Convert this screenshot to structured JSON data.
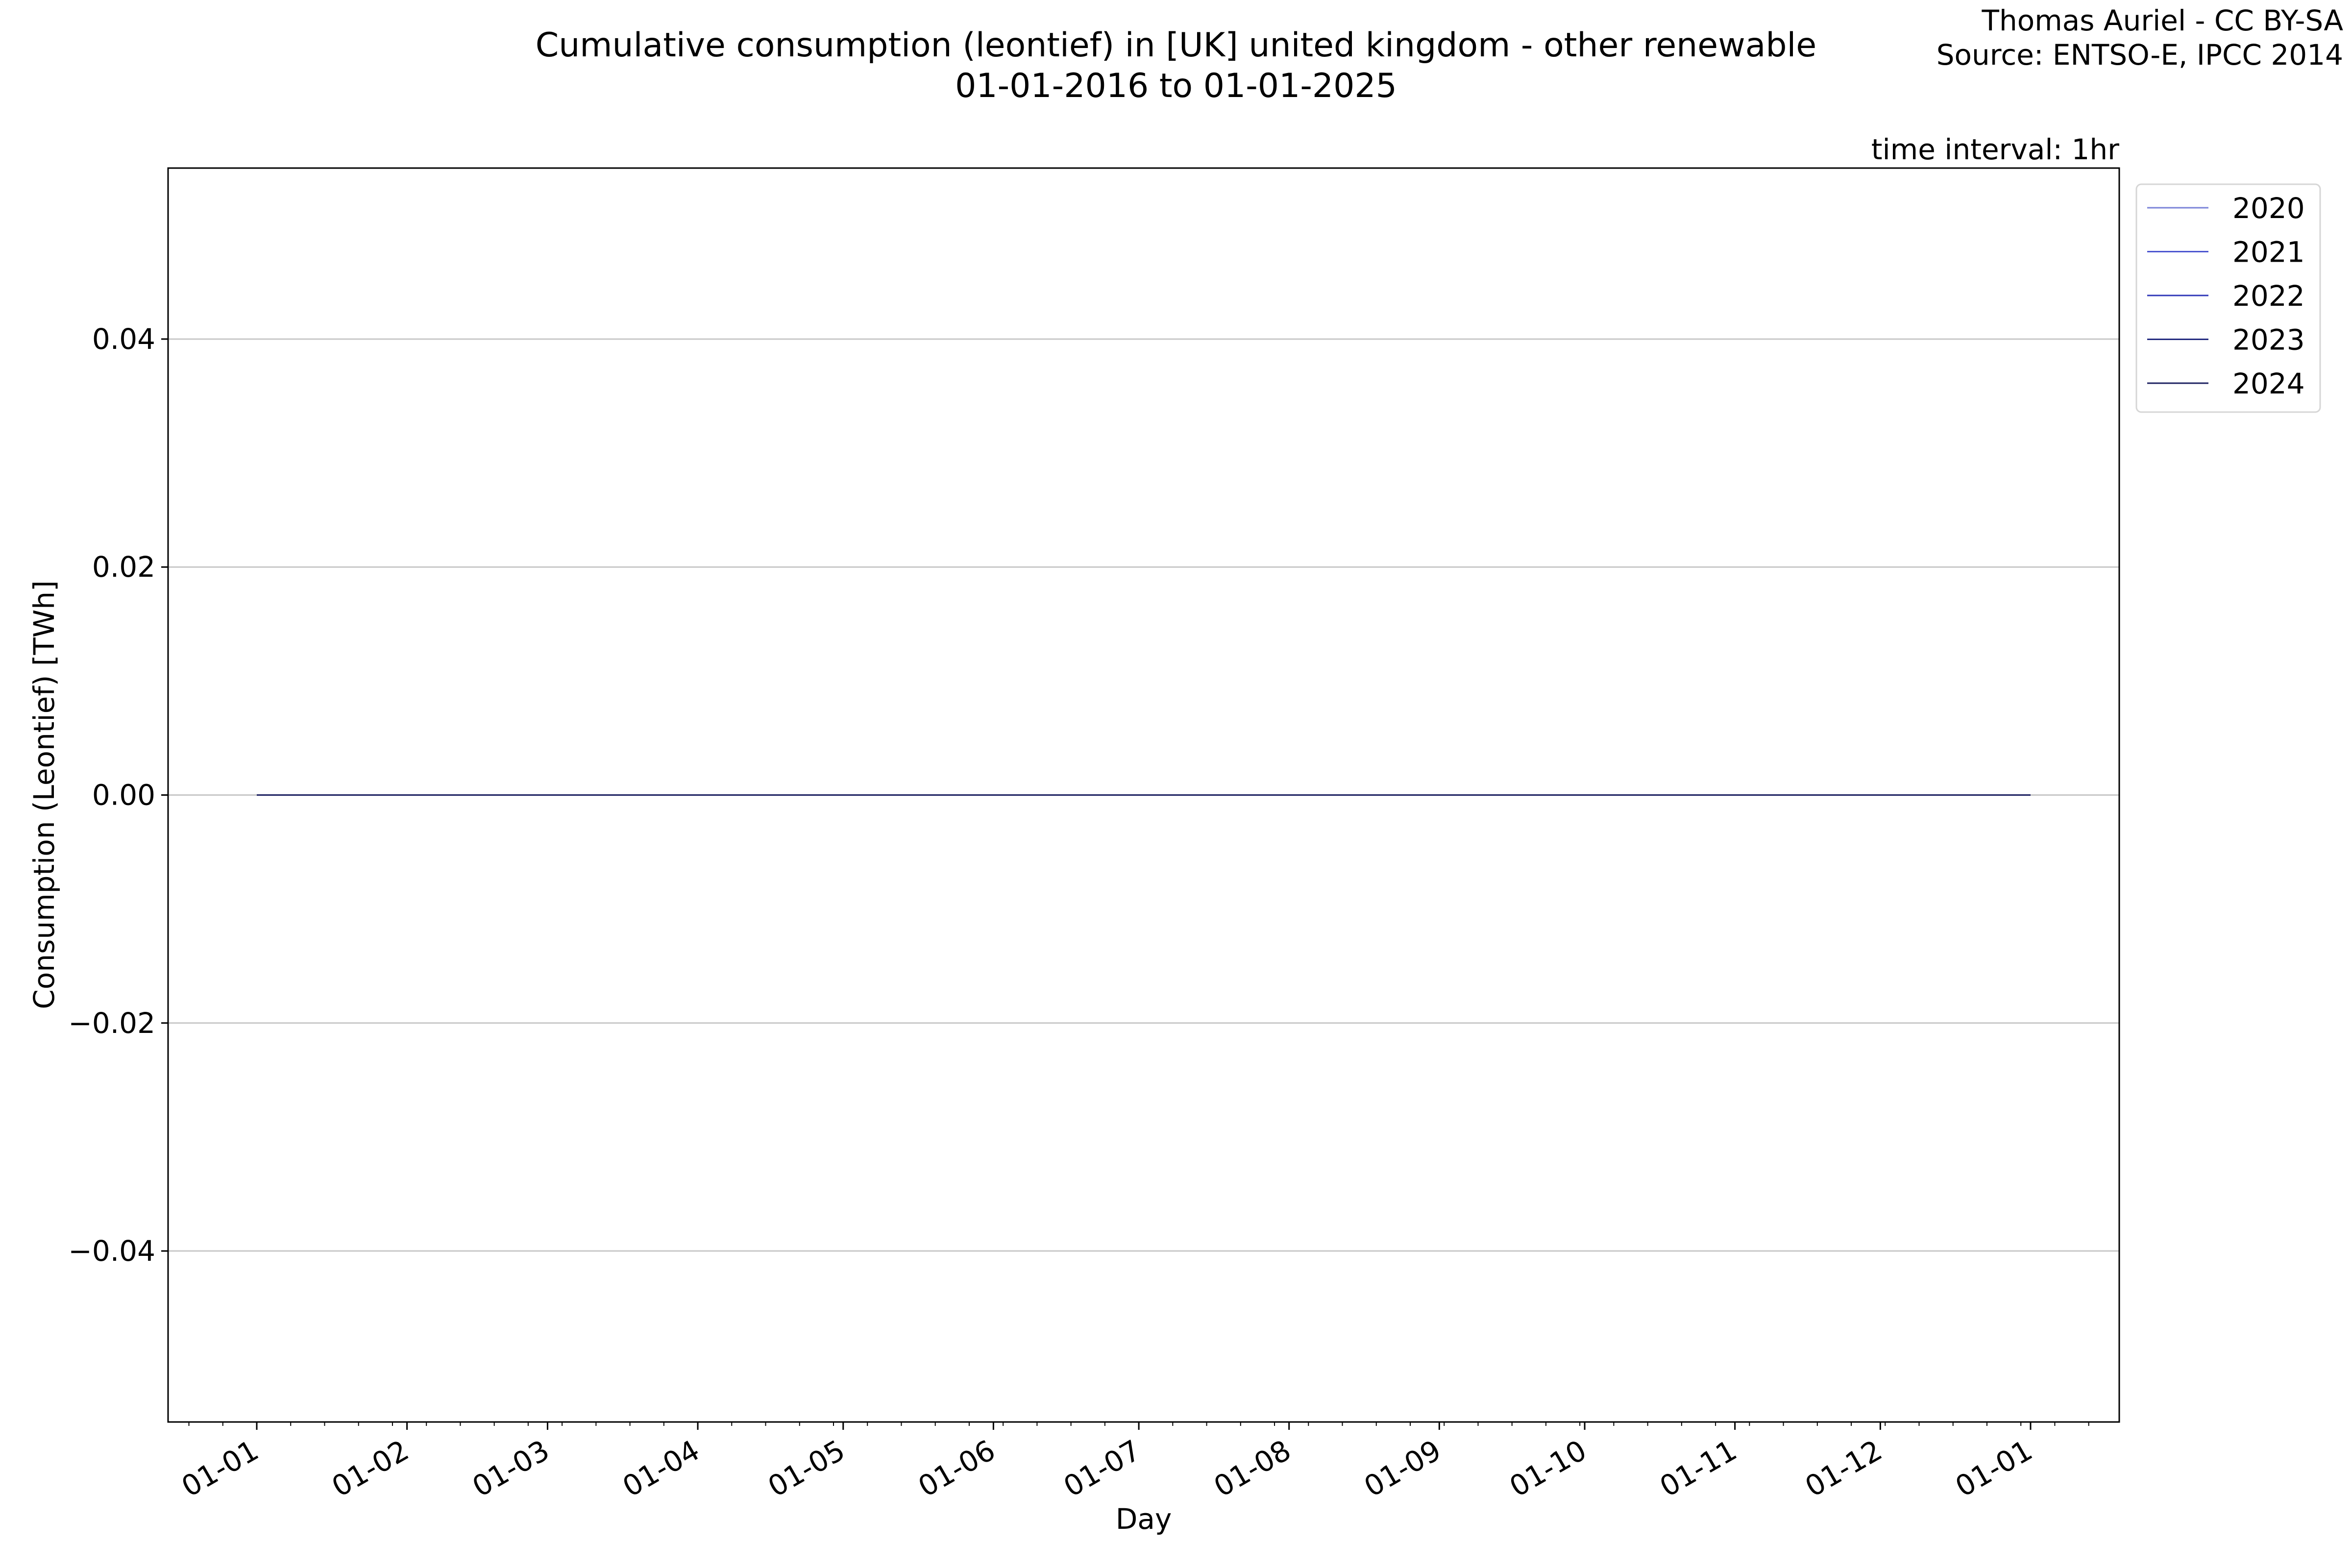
{
  "chart_data": {
    "type": "line",
    "title": "Cumulative consumption (leontief) in [UK] united kingdom - other renewable",
    "subtitle": "01-01-2016 to 01-01-2025",
    "credit": "Thomas Auriel - CC BY-SA",
    "source": "Source: ENTSO-E, IPCC 2014",
    "annotation": "time interval: 1hr",
    "xlabel": "Day",
    "ylabel": "Consumption (Leontief) [TWh]",
    "x_tick_labels": [
      "01-01",
      "01-02",
      "01-03",
      "01-04",
      "01-05",
      "01-06",
      "01-07",
      "01-08",
      "01-09",
      "01-10",
      "01-11",
      "01-12",
      "01-01"
    ],
    "y_ticks": [
      -0.04,
      -0.02,
      0.0,
      0.02,
      0.04
    ],
    "y_tick_labels": [
      "−0.04",
      "−0.02",
      "0.00",
      "0.02",
      "0.04"
    ],
    "ylim": [
      -0.055,
      0.055
    ],
    "grid": "horizontal",
    "legend_position": "outside-top-right",
    "series": [
      {
        "name": "2020",
        "color": "#7b84d8",
        "x": [
          "01-01",
          "01-01 (next year)"
        ],
        "y": [
          0,
          0
        ]
      },
      {
        "name": "2021",
        "color": "#4c56d0",
        "x": [
          "01-01",
          "01-01 (next year)"
        ],
        "y": [
          0,
          0
        ]
      },
      {
        "name": "2022",
        "color": "#3039b8",
        "x": [
          "01-01",
          "01-01 (next year)"
        ],
        "y": [
          0,
          0
        ]
      },
      {
        "name": "2023",
        "color": "#242c80",
        "x": [
          "01-01",
          "01-01 (next year)"
        ],
        "y": [
          0,
          0
        ]
      },
      {
        "name": "2024",
        "color": "#1c2060",
        "x": [
          "01-01",
          "01-01 (next year)"
        ],
        "y": [
          0,
          0
        ]
      }
    ]
  }
}
